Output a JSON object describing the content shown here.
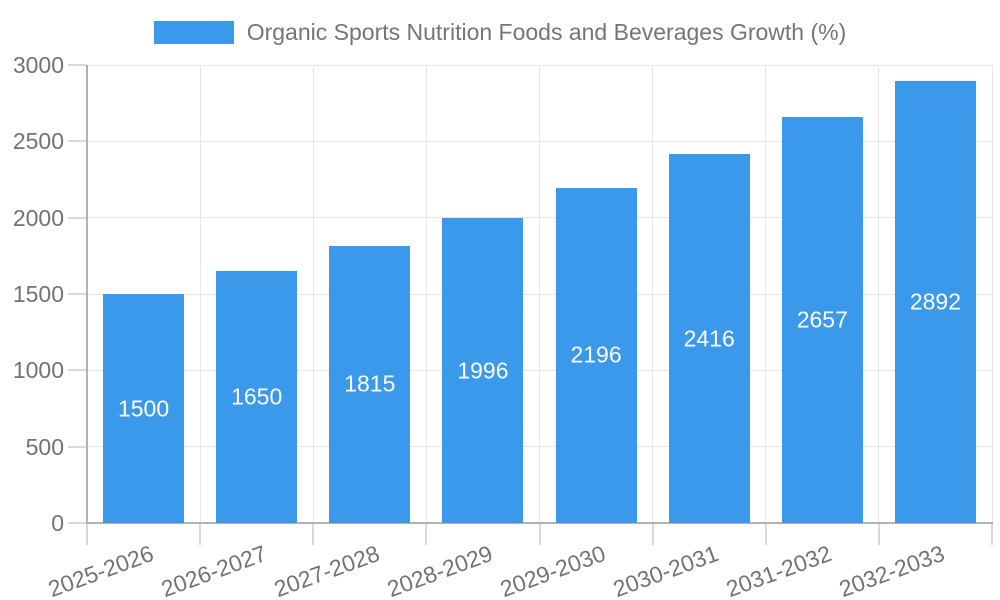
{
  "legend": {
    "label": "Organic Sports Nutrition Foods and Beverages Growth (%)"
  },
  "chart_data": {
    "type": "bar",
    "title": "Organic Sports Nutrition Foods and Beverages Growth (%)",
    "categories": [
      "2025-2026",
      "2026-2027",
      "2027-2028",
      "2028-2029",
      "2029-2030",
      "2030-2031",
      "2031-2032",
      "2032-2033"
    ],
    "series": [
      {
        "name": "Organic Sports Nutrition Foods and Beverages Growth (%)",
        "values": [
          1500,
          1650,
          1815,
          1996,
          2196,
          2416,
          2657,
          2892
        ]
      }
    ],
    "xlabel": "",
    "ylabel": "",
    "ylim": [
      0,
      3000
    ],
    "yticks": [
      0,
      500,
      1000,
      1500,
      2000,
      2500,
      3000
    ],
    "grid": true,
    "legend_position": "top",
    "value_label_position": "inside-center"
  },
  "colors": {
    "bar": "#3b99ec",
    "axis_line": "#b3b3b3",
    "tick_mark": "#d9d9d9",
    "grid_line": "#e6e6e6",
    "axis_text": "#737373",
    "legend_text": "#757575",
    "bar_value_text": "#ffffff",
    "background": "#ffffff"
  }
}
